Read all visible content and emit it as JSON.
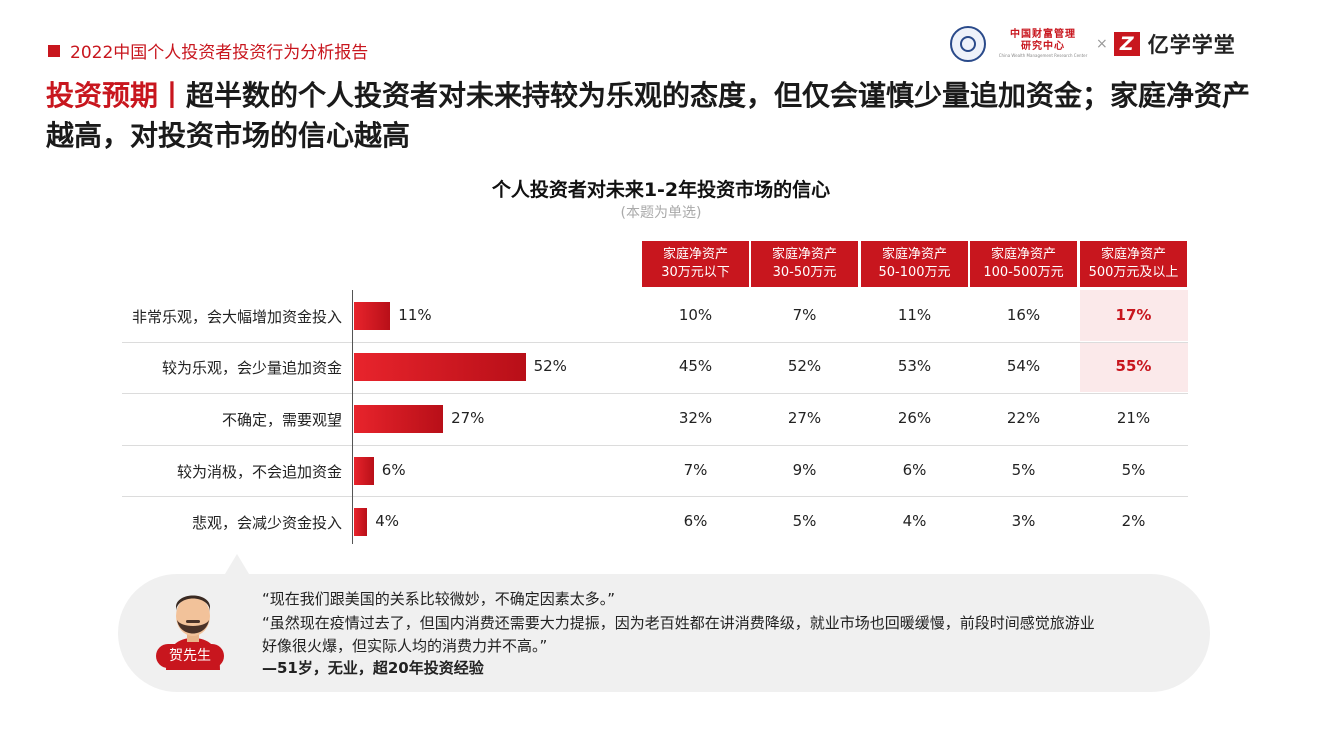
{
  "header": {
    "report_title": "2022中国个人投资者投资行为分析报告",
    "logo1_cn_line1": "中国财富管理",
    "logo1_cn_line2": "研究中心",
    "logo1_en": "China Wealth Management Research Center",
    "times": "×",
    "logo2_mark": "Z",
    "logo2_name": "亿学学堂"
  },
  "headline": {
    "label": "投资预期",
    "separator": "丨",
    "text": "超半数的个人投资者对未来持较为乐观的态度，但仅会谨慎少量追加资金；家庭净资产越高，对投资市场的信心越高"
  },
  "chart_data": {
    "type": "bar",
    "orientation": "horizontal",
    "title": "个人投资者对未来1-2年投资市场的信心",
    "subtitle": "(本题为单选)",
    "categories": [
      "非常乐观，会大幅增加资金投入",
      "较为乐观，会少量追加资金",
      "不确定，需要观望",
      "较为消极，不会追加资金",
      "悲观，会减少资金投入"
    ],
    "values": [
      11,
      52,
      27,
      6,
      4
    ],
    "value_labels": [
      "11%",
      "52%",
      "27%",
      "6%",
      "4%"
    ],
    "xlim": [
      0,
      100
    ],
    "bar_color": "#c8161e",
    "table": {
      "columns": [
        "家庭净资产\n30万元以下",
        "家庭净资产\n30-50万元",
        "家庭净资产\n50-100万元",
        "家庭净资产\n100-500万元",
        "家庭净资产\n500万元及以上"
      ],
      "columns_line1": [
        "家庭净资产",
        "家庭净资产",
        "家庭净资产",
        "家庭净资产",
        "家庭净资产"
      ],
      "columns_line2": [
        "30万元以下",
        "30-50万元",
        "50-100万元",
        "100-500万元",
        "500万元及以上"
      ],
      "rows": [
        [
          "10%",
          "7%",
          "11%",
          "16%",
          "17%"
        ],
        [
          "45%",
          "52%",
          "53%",
          "54%",
          "55%"
        ],
        [
          "32%",
          "27%",
          "26%",
          "22%",
          "21%"
        ],
        [
          "7%",
          "9%",
          "6%",
          "5%",
          "5%"
        ],
        [
          "6%",
          "5%",
          "4%",
          "3%",
          "2%"
        ]
      ],
      "highlighted_cells": [
        [
          0,
          4
        ],
        [
          1,
          4
        ]
      ]
    }
  },
  "quote": {
    "speaker": "贺先生",
    "line1": "“现在我们跟美国的关系比较微妙，不确定因素太多。”",
    "line2": "“虽然现在疫情过去了，但国内消费还需要大力提振，因为老百姓都在讲消费降级，就业市场也回暖缓慢，前段时间感觉旅游业",
    "line3": "好像很火爆，但实际人均的消费力并不高。”",
    "attribution": "—51岁，无业，超20年投资经验"
  },
  "colors": {
    "accent": "#c8161e",
    "highlight_bg": "#fbe9ea",
    "quote_bg": "#f0f0f0"
  }
}
